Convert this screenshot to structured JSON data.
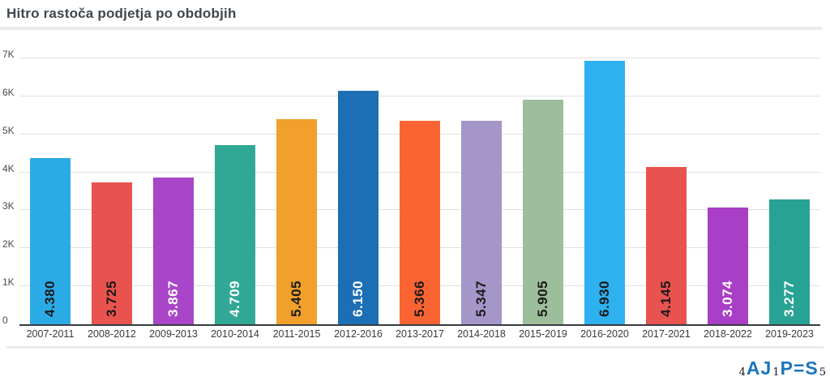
{
  "chart_data": {
    "type": "bar",
    "title": "Hitro rastoča podjetja po obdobjih",
    "xlabel": "",
    "ylabel": "",
    "categories": [
      "2007-2011",
      "2008-2012",
      "2009-2013",
      "2010-2014",
      "2011-2015",
      "2012-2016",
      "2013-2017",
      "2014-2018",
      "2015-2019",
      "2016-2020",
      "2017-2021",
      "2018-2022",
      "2019-2023"
    ],
    "values": [
      4380,
      3725,
      3867,
      4709,
      5405,
      6150,
      5366,
      5347,
      5905,
      6930,
      4145,
      3074,
      3277
    ],
    "value_labels": [
      "4.380",
      "3.725",
      "3.867",
      "4.709",
      "5.405",
      "6.150",
      "5.366",
      "5.347",
      "5.905",
      "6.930",
      "4.145",
      "3.074",
      "3.277"
    ],
    "bar_colors": [
      "#2babe6",
      "#e9534f",
      "#a845c8",
      "#31a795",
      "#f0a02b",
      "#1c6fb4",
      "#fa6433",
      "#a596c8",
      "#9dbe9b",
      "#2db1ef",
      "#e9534f",
      "#a83fc6",
      "#28a294"
    ],
    "label_text_colors": [
      "#1a1a1a",
      "#1a1a1a",
      "#ffffff",
      "#ffffff",
      "#1a1a1a",
      "#ffffff",
      "#1a1a1a",
      "#1a1a1a",
      "#1a1a1a",
      "#1a1a1a",
      "#1a1a1a",
      "#ffffff",
      "#ffffff"
    ],
    "ylim": [
      0,
      7000
    ],
    "y_ticks": [
      "0",
      "1K",
      "2K",
      "3K",
      "4K",
      "5K",
      "6K",
      "7K"
    ],
    "grid": true,
    "legend": false,
    "gridline_color": "#e0e0e0",
    "axis_color": "#383c42"
  },
  "footer": {
    "logo": {
      "name": "AJPES",
      "brand_color": "#1b75bc",
      "segments": [
        {
          "text": "4",
          "kind": "digit"
        },
        {
          "text": "A",
          "kind": "letter"
        },
        {
          "text": "J",
          "kind": "letter"
        },
        {
          "text": "1",
          "kind": "digit"
        },
        {
          "text": "P",
          "kind": "letter"
        },
        {
          "text": "=",
          "kind": "letter"
        },
        {
          "text": "S",
          "kind": "letter"
        },
        {
          "text": "5",
          "kind": "digit"
        }
      ]
    }
  }
}
